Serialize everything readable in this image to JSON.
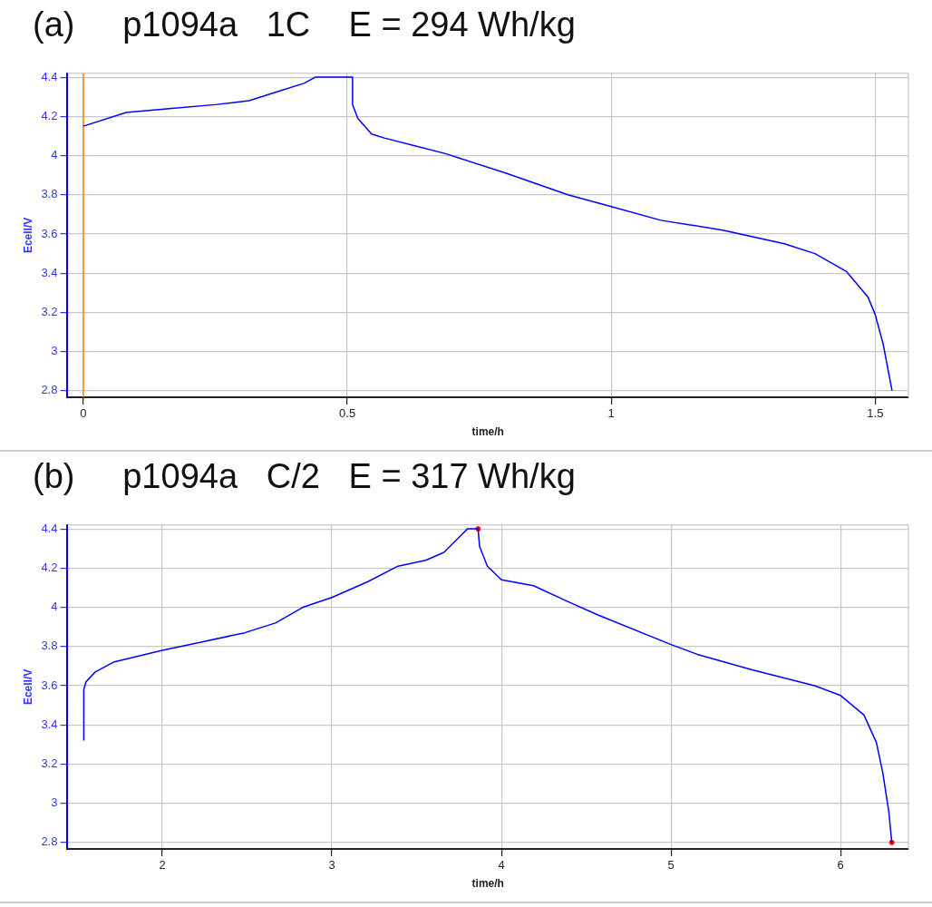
{
  "chart_data": [
    {
      "type": "line",
      "title": "(a)     p1094a   1C    E = 294 Wh/kg",
      "xlabel": "time/h",
      "ylabel": "Ecell/V",
      "xlim": [
        -0.03,
        1.563
      ],
      "xticks": [
        0,
        0.5,
        1,
        1.5
      ],
      "ylim": [
        2.767,
        4.42
      ],
      "yticks": [
        2.8,
        3,
        3.2,
        3.4,
        3.6,
        3.8,
        4,
        4.2,
        4.4
      ],
      "grid": true,
      "legend": false,
      "marker": "none",
      "line_style": "solid",
      "ref_lines": [
        {
          "axis": "x",
          "value": 0,
          "color": "#ff8000"
        }
      ],
      "series": [
        {
          "color": "#0000ff",
          "x": [
            0,
            0.081,
            0.163,
            0.25,
            0.314,
            0.372,
            0.419,
            0.439,
            0.51,
            0.51,
            0.52,
            0.546,
            0.57,
            0.628,
            0.686,
            0.801,
            0.918,
            1,
            1.094,
            1.211,
            1.328,
            1.386,
            1.445,
            1.486,
            1.5,
            1.515,
            1.532
          ],
          "values": [
            4.15,
            4.22,
            4.24,
            4.26,
            4.28,
            4.33,
            4.37,
            4.4,
            4.4,
            4.26,
            4.19,
            4.11,
            4.09,
            4.05,
            4.01,
            3.91,
            3.8,
            3.74,
            3.67,
            3.62,
            3.55,
            3.5,
            3.41,
            3.28,
            3.19,
            3.04,
            2.8
          ]
        }
      ]
    },
    {
      "type": "line",
      "title": "(b)     p1094a   C/2   E = 317 Wh/kg",
      "xlabel": "time/h",
      "ylabel": "Ecell/V",
      "xlim": [
        1.441,
        6.4
      ],
      "xticks": [
        2,
        3,
        4,
        5,
        6
      ],
      "ylim": [
        2.767,
        4.42
      ],
      "yticks": [
        2.8,
        3,
        3.2,
        3.4,
        3.6,
        3.8,
        4,
        4.2,
        4.4
      ],
      "grid": true,
      "legend": false,
      "marker": "none",
      "line_style": "solid",
      "series": [
        {
          "color": "#0000ff",
          "x": [
            1.537,
            1.537,
            1.55,
            1.604,
            1.712,
            1.856,
            2,
            2.216,
            2.486,
            2.667,
            2.829,
            3,
            3.21,
            3.39,
            3.553,
            3.661,
            3.8,
            3.862,
            3.871,
            3.917,
            4,
            4.189,
            4.39,
            4.572,
            5,
            5.155,
            5.483,
            5.847,
            6,
            6.138,
            6.211,
            6.248,
            6.284,
            6.302
          ],
          "values": [
            3.32,
            3.58,
            3.62,
            3.67,
            3.72,
            3.75,
            3.78,
            3.82,
            3.87,
            3.92,
            4,
            4.05,
            4.13,
            4.21,
            4.24,
            4.28,
            4.4,
            4.4,
            4.31,
            4.21,
            4.14,
            4.11,
            4.03,
            3.96,
            3.81,
            3.76,
            3.68,
            3.6,
            3.55,
            3.45,
            3.31,
            3.16,
            2.96,
            2.8
          ]
        },
        {
          "type": "scatter",
          "color": "#ff0000",
          "marker": "circle",
          "x": [
            3.862,
            6.302
          ],
          "values": [
            4.4,
            2.8
          ]
        }
      ]
    }
  ]
}
